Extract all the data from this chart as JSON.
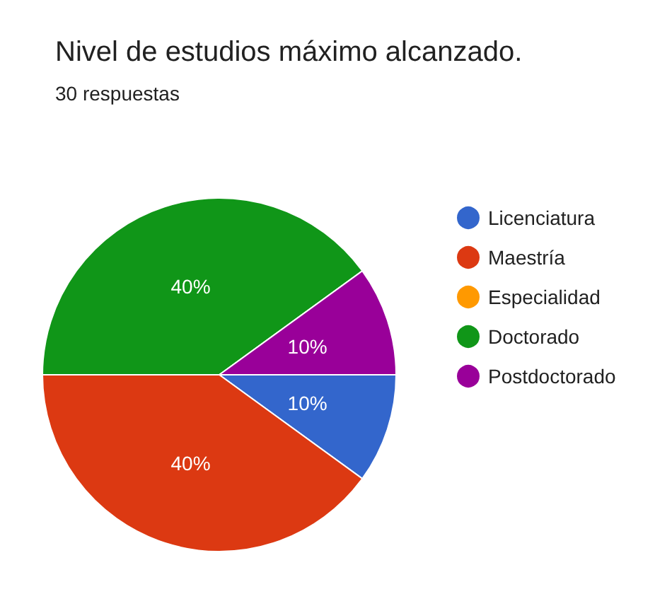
{
  "chart_data": {
    "type": "pie",
    "title": "Nivel de estudios máximo alcanzado.",
    "subtitle": "30 respuestas",
    "categories": [
      "Licenciatura",
      "Maestría",
      "Especialidad",
      "Doctorado",
      "Postdoctorado"
    ],
    "values": [
      10,
      40,
      0,
      40,
      10
    ],
    "colors": [
      "#3366cc",
      "#dc3912",
      "#ff9900",
      "#109618",
      "#990099"
    ],
    "value_labels": [
      "10%",
      "40%",
      null,
      "40%",
      "10%"
    ],
    "legend": "right"
  }
}
